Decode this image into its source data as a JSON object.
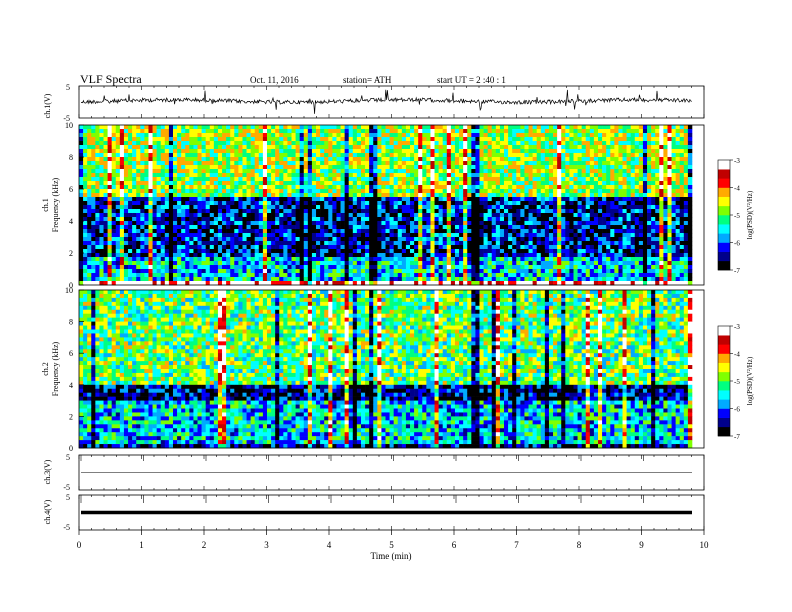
{
  "header": {
    "title": "VLF  Spectra",
    "date": "Oct. 11, 2016",
    "station": "station= ATH",
    "start": "start  UT  =   2  :40 : 1"
  },
  "colors": {
    "colormap": [
      "#000000",
      "#00008b",
      "#0000ff",
      "#00aaff",
      "#00ffff",
      "#00ff80",
      "#7fff00",
      "#ffff00",
      "#ffaa00",
      "#ff0000",
      "#c00000",
      "#ffffff"
    ],
    "background": "#ffffff",
    "axis": "#000000"
  },
  "chart_data": [
    {
      "type": "line",
      "panel": "ch1-waveform",
      "ylabel": "ch.1(V)",
      "ylim": [
        -5,
        5
      ],
      "yticks": [
        "5",
        "-5"
      ],
      "x_range_min": [
        0,
        10
      ],
      "note_visible": "continuous noisy waveform around 0 V with frequent spikes"
    },
    {
      "type": "heatmap",
      "panel": "ch1-spectrogram",
      "ylabel": "Frequency (kHz)",
      "ylabel_channel": "ch.1",
      "ylim": [
        0,
        10
      ],
      "yticks": [
        "0",
        "2",
        "4",
        "6",
        "8",
        "10"
      ],
      "colorbar": {
        "label": "log(PSD)(V²/Hz)",
        "ticks": [
          "-3",
          "-4",
          "-5",
          "-6",
          "-7"
        ],
        "range": [
          -7,
          -3
        ]
      },
      "bands": [
        {
          "f0": 0.0,
          "f1": 0.25,
          "level": -3.2
        },
        {
          "f0": 0.25,
          "f1": 1.8,
          "level": -5.6
        },
        {
          "f0": 1.8,
          "f1": 5.5,
          "level": -6.3
        },
        {
          "f0": 5.5,
          "f1": 10.0,
          "level": -4.8
        }
      ]
    },
    {
      "type": "heatmap",
      "panel": "ch2-spectrogram",
      "ylabel": "Frequency (kHz)",
      "ylabel_channel": "ch.2",
      "ylim": [
        0,
        10
      ],
      "yticks": [
        "0",
        "2",
        "4",
        "6",
        "8",
        "10"
      ],
      "colorbar": {
        "label": "log(PSD)(V²/Hz)",
        "ticks": [
          "-3",
          "-4",
          "-5",
          "-6",
          "-7"
        ],
        "range": [
          -7,
          -3
        ]
      },
      "bands": [
        {
          "f0": 0.0,
          "f1": 0.3,
          "level": -6.5
        },
        {
          "f0": 0.3,
          "f1": 3.0,
          "level": -5.6
        },
        {
          "f0": 3.0,
          "f1": 4.0,
          "level": -6.5
        },
        {
          "f0": 4.0,
          "f1": 10.0,
          "level": -5.0
        }
      ]
    },
    {
      "type": "line",
      "panel": "ch3-waveform",
      "ylabel": "ch.3(V)",
      "ylim": [
        -5,
        5
      ],
      "yticks": [
        "5",
        "-5"
      ],
      "note_visible": "flat line at 0 V"
    },
    {
      "type": "line",
      "panel": "ch4-waveform",
      "ylabel": "ch.4(V)",
      "ylim": [
        -5,
        5
      ],
      "yticks": [
        "5",
        "-5"
      ],
      "note_visible": "thick flat line near 0 V"
    }
  ],
  "xaxis": {
    "label": "Time  (min)",
    "range": [
      0,
      10
    ],
    "ticks": [
      "0",
      "1",
      "2",
      "3",
      "4",
      "5",
      "6",
      "7",
      "8",
      "9",
      "10"
    ]
  },
  "ylabels": {
    "ch1_wave": "ch.1(V)",
    "ch1_spec_line1": "ch.1",
    "ch1_spec_line2": "Frequency  (kHz)",
    "ch2_spec_line1": "ch.2",
    "ch2_spec_line2": "Frequency  (kHz)",
    "ch3_wave": "ch.3(V)",
    "ch4_wave": "ch.4(V)"
  },
  "wave_ticks": {
    "ch1_top": "5",
    "ch1_bot": "-5",
    "ch3_top": "5",
    "ch3_bot": "-5",
    "ch4_top": "5",
    "ch4_bot": "-5"
  },
  "freq_ticks": [
    "0",
    "2",
    "4",
    "6",
    "8",
    "10"
  ],
  "colorbar_label": "log(PSD)(V²/Hz)",
  "colorbar_ticks": [
    "-3",
    "-4",
    "-5",
    "-6",
    "-7"
  ]
}
